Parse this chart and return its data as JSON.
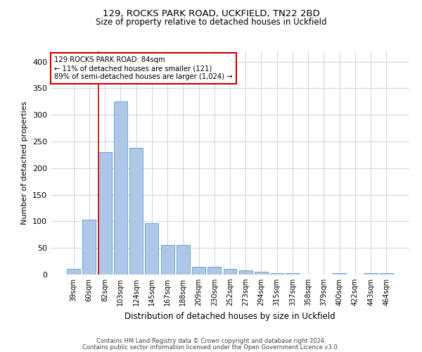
{
  "title1": "129, ROCKS PARK ROAD, UCKFIELD, TN22 2BD",
  "title2": "Size of property relative to detached houses in Uckfield",
  "xlabel": "Distribution of detached houses by size in Uckfield",
  "ylabel": "Number of detached properties",
  "categories": [
    "39sqm",
    "60sqm",
    "82sqm",
    "103sqm",
    "124sqm",
    "145sqm",
    "167sqm",
    "188sqm",
    "209sqm",
    "230sqm",
    "252sqm",
    "273sqm",
    "294sqm",
    "315sqm",
    "337sqm",
    "358sqm",
    "379sqm",
    "400sqm",
    "422sqm",
    "443sqm",
    "464sqm"
  ],
  "values": [
    10,
    103,
    230,
    325,
    238,
    97,
    55,
    55,
    15,
    14,
    10,
    8,
    5,
    3,
    2,
    0,
    0,
    3,
    0,
    3,
    2
  ],
  "bar_color": "#aec6e8",
  "bar_edge_color": "#5b9bd5",
  "highlight_line_color": "#cc0000",
  "highlight_bar_index": 2,
  "annotation_line1": "129 ROCKS PARK ROAD: 84sqm",
  "annotation_line2": "← 11% of detached houses are smaller (121)",
  "annotation_line3": "89% of semi-detached houses are larger (1,024) →",
  "annotation_box_color": "#ffffff",
  "annotation_box_edge_color": "#cc0000",
  "ylim": [
    0,
    420
  ],
  "yticks": [
    0,
    50,
    100,
    150,
    200,
    250,
    300,
    350,
    400
  ],
  "footer1": "Contains HM Land Registry data © Crown copyright and database right 2024.",
  "footer2": "Contains public sector information licensed under the Open Government Licence v3.0.",
  "bg_color": "#ffffff",
  "grid_color": "#c8d4e8"
}
